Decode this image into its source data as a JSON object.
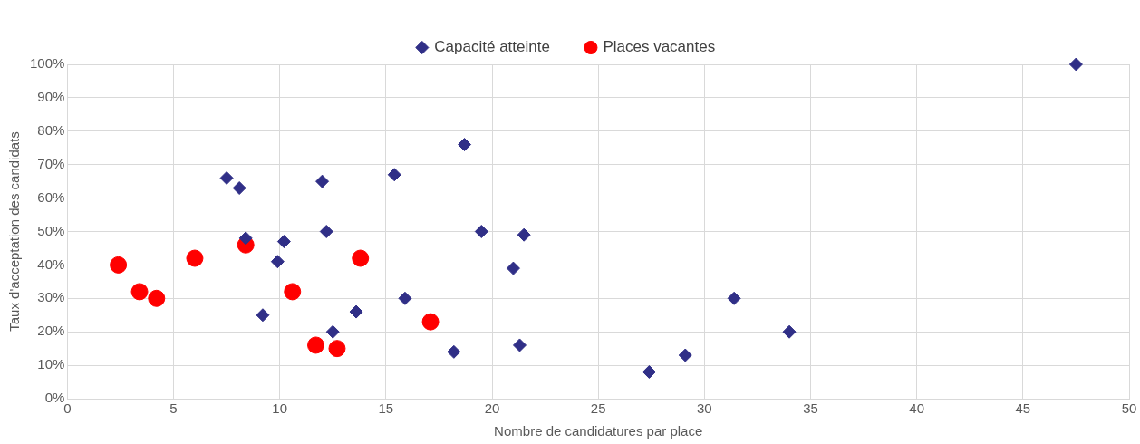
{
  "chart_data": {
    "type": "scatter",
    "xlabel": "Nombre de candidatures par place",
    "ylabel": "Taux d'acceptation des candidats",
    "xlim": [
      0,
      50
    ],
    "xticks": [
      0,
      5,
      10,
      15,
      20,
      25,
      30,
      35,
      40,
      45,
      50
    ],
    "ylim": [
      0,
      100
    ],
    "yticks": [
      {
        "value": 0,
        "label": "0%"
      },
      {
        "value": 10,
        "label": "10%"
      },
      {
        "value": 20,
        "label": "20%"
      },
      {
        "value": 30,
        "label": "30%"
      },
      {
        "value": 40,
        "label": "40%"
      },
      {
        "value": 50,
        "label": "50%"
      },
      {
        "value": 60,
        "label": "60%"
      },
      {
        "value": 70,
        "label": "70%"
      },
      {
        "value": 80,
        "label": "80%"
      },
      {
        "value": 90,
        "label": "90%"
      },
      {
        "value": 100,
        "label": "100%"
      }
    ],
    "grid": true,
    "legend": "top",
    "series": [
      {
        "name": "Capacité atteinte",
        "color": "#302f87",
        "marker": "diamond",
        "x": [
          7.5,
          8.1,
          8.4,
          9.9,
          9.2,
          10.2,
          12.0,
          12.2,
          12.5,
          13.6,
          15.4,
          15.9,
          18.7,
          18.2,
          19.5,
          21.0,
          21.5,
          21.3,
          27.4,
          29.1,
          31.4,
          34.0,
          47.5
        ],
        "values": [
          66,
          63,
          48,
          41,
          25,
          47,
          65,
          50,
          20,
          26,
          67,
          30,
          76,
          14,
          50,
          39,
          49,
          16,
          8,
          13,
          30,
          20,
          100
        ]
      },
      {
        "name": "Places vacantes",
        "color": "#ff0000",
        "marker": "circle",
        "x": [
          2.4,
          3.4,
          4.2,
          6.0,
          8.4,
          10.6,
          11.7,
          12.7,
          13.8,
          17.1
        ],
        "values": [
          40,
          32,
          30,
          42,
          46,
          32,
          16,
          15,
          42,
          23
        ]
      }
    ]
  }
}
